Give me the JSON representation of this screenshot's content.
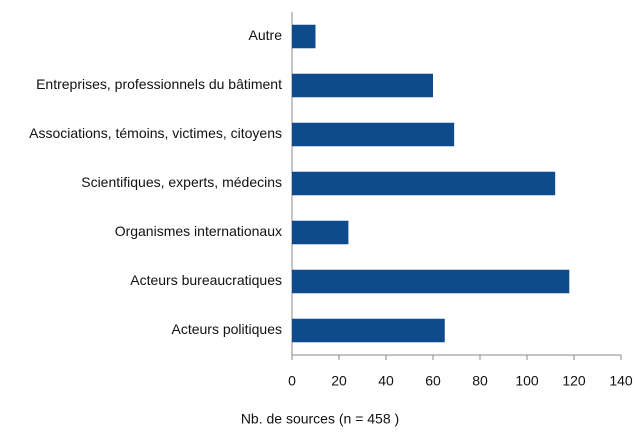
{
  "chart_data": {
    "type": "bar",
    "orientation": "horizontal",
    "categories": [
      "Autre",
      "Entreprises, professionnels du bâtiment",
      "Associations, témoins, victimes, citoyens",
      "Scientifiques, experts, médecins",
      "Organismes internationaux",
      "Acteurs bureaucratiques",
      "Acteurs politiques"
    ],
    "values": [
      10,
      60,
      69,
      112,
      24,
      118,
      65
    ],
    "color": "#0e4a8c",
    "xlabel": "Nb. de sources (n = 458 )",
    "xlim": [
      0,
      140
    ],
    "xticks": [
      0,
      20,
      40,
      60,
      80,
      100,
      120,
      140
    ],
    "grid": false
  }
}
